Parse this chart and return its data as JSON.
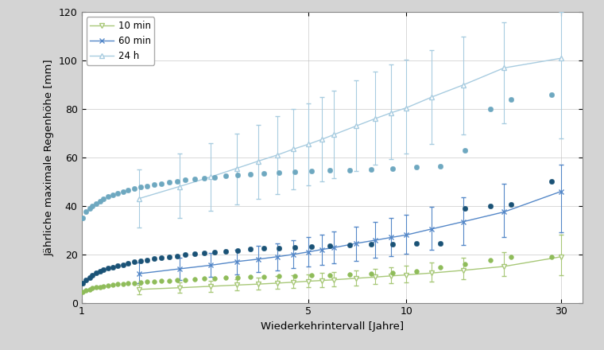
{
  "xlabel": "Wiederkehrintervall [Jahre]",
  "ylabel": "Jährliche maximale Regenhöhe [mm]",
  "ylim": [
    0,
    120
  ],
  "xlim": [
    1,
    35
  ],
  "xticks": [
    1,
    5,
    10,
    30
  ],
  "yticks": [
    0,
    20,
    40,
    60,
    80,
    100,
    120
  ],
  "obs_10min": {
    "x": [
      1.01,
      1.03,
      1.06,
      1.08,
      1.11,
      1.14,
      1.17,
      1.21,
      1.25,
      1.29,
      1.34,
      1.39,
      1.45,
      1.52,
      1.59,
      1.67,
      1.76,
      1.86,
      1.97,
      2.09,
      2.23,
      2.39,
      2.57,
      2.78,
      3.02,
      3.31,
      3.65,
      4.05,
      4.53,
      5.11,
      5.82,
      6.7,
      7.78,
      9.1,
      10.75,
      12.75,
      15.2,
      18.2,
      21.0,
      28.0
    ],
    "y": [
      4.5,
      5.2,
      5.6,
      6.0,
      6.3,
      6.6,
      6.9,
      7.1,
      7.3,
      7.6,
      7.8,
      8.0,
      8.2,
      8.4,
      8.6,
      8.8,
      9.0,
      9.2,
      9.4,
      9.5,
      9.7,
      9.9,
      10.1,
      10.3,
      10.5,
      10.7,
      10.8,
      11.0,
      11.2,
      11.3,
      11.5,
      11.7,
      12.0,
      12.5,
      13.0,
      14.5,
      16.0,
      17.5,
      19.0,
      19.0
    ],
    "color": "#8fbc5a",
    "edgecolor": "#8fbc5a",
    "marker": "o",
    "size": 18
  },
  "obs_60min": {
    "x": [
      1.01,
      1.03,
      1.06,
      1.08,
      1.11,
      1.14,
      1.17,
      1.21,
      1.25,
      1.29,
      1.34,
      1.39,
      1.45,
      1.52,
      1.59,
      1.67,
      1.76,
      1.86,
      1.97,
      2.09,
      2.23,
      2.39,
      2.57,
      2.78,
      3.02,
      3.31,
      3.65,
      4.05,
      4.53,
      5.11,
      5.82,
      6.7,
      7.78,
      9.1,
      10.75,
      12.75,
      15.2,
      18.2,
      21.0,
      28.0
    ],
    "y": [
      8.0,
      9.5,
      10.5,
      11.5,
      12.3,
      13.0,
      13.7,
      14.2,
      14.8,
      15.3,
      15.8,
      16.3,
      16.8,
      17.3,
      17.7,
      18.2,
      18.6,
      19.0,
      19.4,
      19.8,
      20.2,
      20.6,
      21.0,
      21.3,
      21.7,
      22.1,
      22.4,
      22.7,
      23.0,
      23.3,
      23.6,
      23.9,
      24.1,
      24.3,
      24.5,
      24.6,
      39.0,
      40.0,
      40.5,
      50.0
    ],
    "color": "#1a5276",
    "edgecolor": "#1a5276",
    "marker": "o",
    "size": 22
  },
  "obs_24h": {
    "x": [
      1.01,
      1.03,
      1.06,
      1.08,
      1.11,
      1.14,
      1.17,
      1.21,
      1.25,
      1.29,
      1.34,
      1.39,
      1.45,
      1.52,
      1.59,
      1.67,
      1.76,
      1.86,
      1.97,
      2.09,
      2.23,
      2.39,
      2.57,
      2.78,
      3.02,
      3.31,
      3.65,
      4.05,
      4.53,
      5.11,
      5.82,
      6.7,
      7.78,
      9.1,
      10.75,
      12.75,
      15.2,
      18.2,
      21.0,
      28.0
    ],
    "y": [
      35.0,
      37.5,
      39.0,
      40.0,
      41.0,
      42.0,
      43.0,
      43.8,
      44.5,
      45.2,
      45.9,
      46.5,
      47.1,
      47.7,
      48.2,
      48.8,
      49.3,
      49.8,
      50.2,
      50.7,
      51.1,
      51.5,
      51.9,
      52.3,
      52.7,
      53.0,
      53.4,
      53.7,
      54.0,
      54.3,
      54.6,
      54.9,
      55.2,
      55.5,
      56.0,
      56.5,
      63.0,
      80.0,
      84.0,
      86.0
    ],
    "color": "#6ea8c0",
    "edgecolor": "#6ea8c0",
    "marker": "o",
    "size": 22
  },
  "sim_x": [
    1.5,
    2.0,
    2.5,
    3.0,
    3.5,
    4.0,
    4.5,
    5.0,
    5.5,
    6.0,
    7.0,
    8.0,
    9.0,
    10.0,
    12.0,
    15.0,
    20.0,
    30.0
  ],
  "sim_10min_y": [
    5.5,
    6.2,
    6.8,
    7.3,
    7.7,
    8.1,
    8.5,
    8.9,
    9.2,
    9.5,
    10.1,
    10.6,
    11.1,
    11.5,
    12.3,
    13.4,
    15.0,
    19.0
  ],
  "sim_10min_low": [
    3.5,
    4.0,
    4.5,
    5.0,
    5.3,
    5.7,
    6.0,
    6.3,
    6.6,
    6.8,
    7.2,
    7.6,
    8.0,
    8.3,
    8.9,
    9.7,
    11.0,
    11.5
  ],
  "sim_10min_high": [
    7.5,
    8.4,
    9.1,
    9.8,
    10.3,
    10.9,
    11.3,
    11.8,
    12.2,
    12.6,
    13.4,
    14.0,
    14.7,
    15.2,
    16.5,
    18.5,
    21.0,
    28.0
  ],
  "sim_10min_color": "#a8c878",
  "sim_10min_marker": "v",
  "sim_60min_y": [
    12.0,
    14.0,
    15.5,
    17.0,
    18.0,
    19.0,
    20.0,
    21.0,
    22.0,
    22.8,
    24.5,
    25.8,
    27.0,
    28.0,
    30.5,
    33.5,
    37.5,
    46.0
  ],
  "sim_60min_low": [
    8.0,
    9.5,
    10.8,
    11.8,
    12.8,
    13.5,
    14.2,
    15.0,
    15.8,
    16.3,
    17.4,
    18.5,
    19.4,
    20.2,
    22.0,
    24.0,
    27.0,
    29.0
  ],
  "sim_60min_high": [
    16.5,
    18.5,
    20.5,
    22.0,
    23.5,
    24.5,
    25.8,
    27.0,
    28.0,
    29.3,
    31.5,
    33.5,
    35.0,
    36.5,
    39.5,
    43.5,
    49.0,
    57.0
  ],
  "sim_60min_color": "#5588c8",
  "sim_60min_marker": "x",
  "sim_24h_y": [
    43.0,
    48.0,
    52.0,
    55.5,
    58.5,
    61.0,
    63.5,
    65.5,
    67.5,
    69.5,
    73.0,
    76.0,
    78.5,
    80.5,
    85.0,
    90.0,
    97.0,
    101.0
  ],
  "sim_24h_low": [
    31.0,
    35.0,
    38.0,
    40.5,
    43.0,
    45.0,
    47.0,
    48.5,
    50.0,
    51.5,
    54.5,
    57.0,
    59.5,
    61.5,
    65.5,
    69.5,
    74.0,
    68.0
  ],
  "sim_24h_high": [
    55.0,
    61.5,
    66.0,
    70.0,
    73.5,
    77.0,
    80.0,
    82.5,
    85.0,
    87.5,
    92.0,
    95.5,
    98.5,
    100.5,
    104.5,
    110.0,
    116.0,
    120.0
  ],
  "sim_24h_color": "#a8cce0",
  "sim_24h_marker": "^",
  "legend_10min_label": "10 min",
  "legend_60min_label": "60 min",
  "legend_24h_label": "24 h",
  "bg_color": "#ffffff",
  "fig_bg_color": "#d4d4d4"
}
